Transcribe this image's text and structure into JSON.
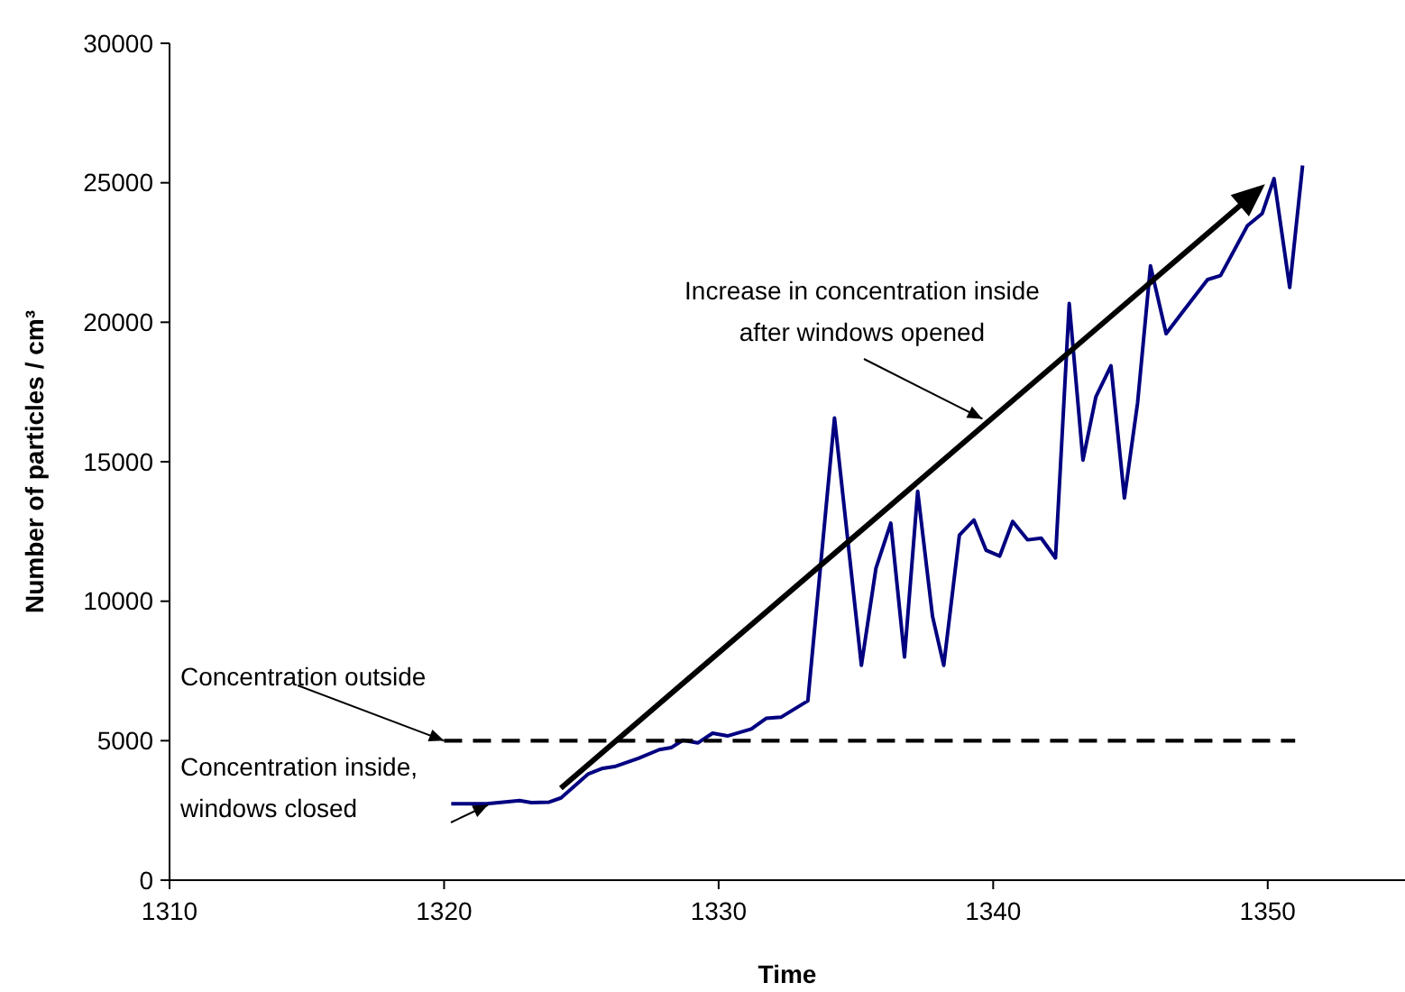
{
  "chart_data": {
    "type": "line",
    "xlabel": "Time",
    "ylabel": "Number of particles  / cm³",
    "xlim": [
      1310,
      1355
    ],
    "xticks": [
      1310,
      1320,
      1330,
      1340,
      1350
    ],
    "ylim": [
      0,
      30000
    ],
    "yticks": [
      0,
      5000,
      10000,
      15000,
      20000,
      25000,
      30000
    ],
    "series": [
      {
        "color": "#000080",
        "line_style": "solid",
        "x": [
          1320.26,
          1321.56,
          1322.75,
          1323.18,
          1323.83,
          1324.26,
          1325.24,
          1325.78,
          1326.21,
          1327.08,
          1327.84,
          1328.27,
          1328.7,
          1329.24,
          1329.78,
          1330.32,
          1331.19,
          1331.73,
          1332.27,
          1333.25,
          1334.22,
          1335.2,
          1335.73,
          1336.27,
          1336.77,
          1337.25,
          1337.79,
          1338.2,
          1338.77,
          1339.3,
          1339.74,
          1340.24,
          1340.71,
          1341.25,
          1341.75,
          1342.27,
          1342.77,
          1343.27,
          1343.74,
          1344.29,
          1344.78,
          1345.26,
          1345.73,
          1346.3,
          1346.88,
          1347.81,
          1348.28,
          1349.26,
          1349.8,
          1350.23,
          1350.8,
          1351.27
        ],
        "values": [
          2740,
          2740,
          2850,
          2780,
          2800,
          2950,
          3800,
          4010,
          4070,
          4370,
          4680,
          4750,
          5020,
          4920,
          5270,
          5170,
          5420,
          5800,
          5840,
          6430,
          16570,
          7700,
          11180,
          12800,
          8000,
          13940,
          9460,
          7700,
          12370,
          12910,
          11830,
          11620,
          12860,
          12200,
          12260,
          11550,
          20670,
          15060,
          17320,
          18440,
          13700,
          17110,
          22020,
          19590,
          20340,
          21530,
          21670,
          23460,
          23900,
          25150,
          21250,
          25620
        ]
      },
      {
        "color": "#000000",
        "line_style": "dashed",
        "x": [
          1320,
          1351
        ],
        "values": [
          5000,
          5000
        ]
      }
    ],
    "annotations": [
      {
        "text": "Concentration outside",
        "x": 1320,
        "y": 5000
      },
      {
        "text": "Concentration inside,\nwindows closed",
        "x": 1321.6,
        "y": 2700
      },
      "Increase in concentration inside\nafter windows opened"
    ]
  }
}
